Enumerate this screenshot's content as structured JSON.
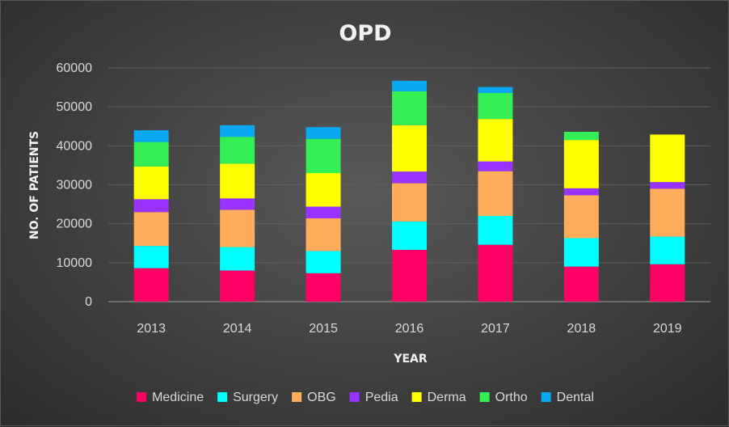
{
  "chart_data": {
    "type": "bar",
    "stacked": true,
    "title": "OPD",
    "xlabel": "YEAR",
    "ylabel": "NO. OF PATIENTS",
    "categories": [
      "2013",
      "2014",
      "2015",
      "2016",
      "2017",
      "2018",
      "2019"
    ],
    "ylim": [
      0,
      60000
    ],
    "yticks": [
      0,
      10000,
      20000,
      30000,
      40000,
      50000,
      60000
    ],
    "grid": true,
    "legend_position": "bottom",
    "series": [
      {
        "name": "Medicine",
        "color": "#ff0066",
        "values": [
          8600,
          8000,
          7300,
          13300,
          14600,
          9000,
          9600
        ]
      },
      {
        "name": "Surgery",
        "color": "#00ffff",
        "values": [
          5700,
          6000,
          5700,
          7300,
          7400,
          7300,
          7100
        ]
      },
      {
        "name": "OBG",
        "color": "#ffad5b",
        "values": [
          8700,
          9600,
          8400,
          9800,
          11500,
          11000,
          12300
        ]
      },
      {
        "name": "Pedia",
        "color": "#9933ff",
        "values": [
          3300,
          2900,
          3000,
          3000,
          2500,
          1800,
          1700
        ]
      },
      {
        "name": "Derma",
        "color": "#ffff00",
        "values": [
          8400,
          8900,
          8600,
          11900,
          10900,
          12400,
          12200
        ]
      },
      {
        "name": "Ortho",
        "color": "#33ee55",
        "values": [
          6300,
          6900,
          8800,
          8700,
          6700,
          2100,
          0
        ]
      },
      {
        "name": "Dental",
        "color": "#0aa8f0",
        "values": [
          3000,
          3000,
          3000,
          2700,
          1500,
          0,
          0
        ]
      }
    ]
  }
}
